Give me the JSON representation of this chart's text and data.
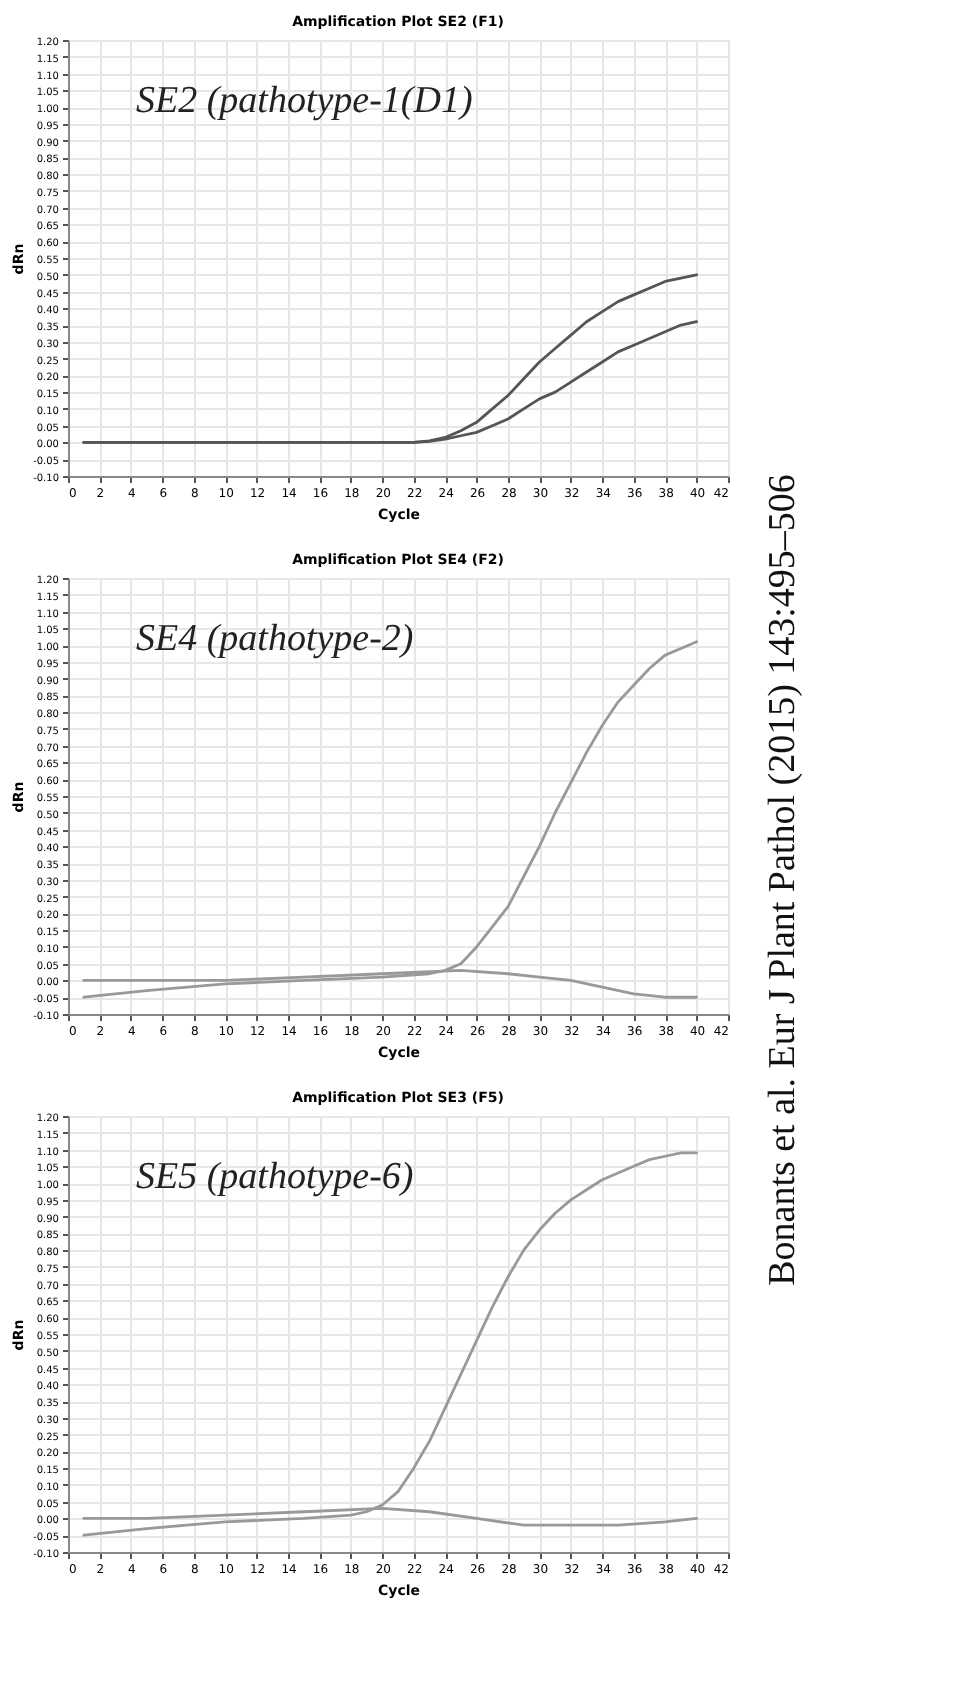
{
  "chart_data": [
    {
      "type": "line",
      "title": "Amplification Plot SE2 (F1)",
      "xlabel": "Cycle",
      "ylabel": "dRn",
      "annotations": [
        "SE2 (pathotype-1(D1)"
      ],
      "grid": true,
      "marker": "none",
      "line_style": "solid",
      "xlim": [
        0,
        42
      ],
      "xticks": [
        0,
        2,
        4,
        6,
        8,
        10,
        12,
        14,
        16,
        18,
        20,
        22,
        24,
        26,
        28,
        30,
        32,
        34,
        36,
        38,
        40,
        42
      ],
      "ylim": [
        -0.1,
        1.2
      ],
      "yticks": [
        {
          "value": -0.1,
          "label": "-0.10"
        },
        {
          "value": -0.05,
          "label": "-0.05"
        },
        {
          "value": 0,
          "label": "0.00"
        },
        {
          "value": 0.05,
          "label": "0.05"
        },
        {
          "value": 0.1,
          "label": "0.10"
        },
        {
          "value": 0.15,
          "label": "0.15"
        },
        {
          "value": 0.2,
          "label": "0.20"
        },
        {
          "value": 0.25,
          "label": "0.25"
        },
        {
          "value": 0.3,
          "label": "0.30"
        },
        {
          "value": 0.35,
          "label": "0.35"
        },
        {
          "value": 0.4,
          "label": "0.40"
        },
        {
          "value": 0.45,
          "label": "0.45"
        },
        {
          "value": 0.5,
          "label": "0.50"
        },
        {
          "value": 0.55,
          "label": "0.55"
        },
        {
          "value": 0.6,
          "label": "0.60"
        },
        {
          "value": 0.65,
          "label": "0.65"
        },
        {
          "value": 0.7,
          "label": "0.70"
        },
        {
          "value": 0.75,
          "label": "0.75"
        },
        {
          "value": 0.8,
          "label": "0.80"
        },
        {
          "value": 0.85,
          "label": "0.85"
        },
        {
          "value": 0.9,
          "label": "0.90"
        },
        {
          "value": 0.95,
          "label": "0.95"
        },
        {
          "value": 1.0,
          "label": "1.00"
        },
        {
          "value": 1.05,
          "label": "1.05"
        },
        {
          "value": 1.1,
          "label": "1.10"
        },
        {
          "value": 1.15,
          "label": "1.15"
        },
        {
          "value": 1.2,
          "label": "1.20"
        }
      ],
      "series": [
        {
          "color": "#555555",
          "x": [
            1,
            5,
            10,
            15,
            20,
            22,
            23,
            24,
            25,
            26,
            27,
            28,
            29,
            30,
            31,
            32,
            33,
            34,
            35,
            36,
            37,
            38,
            39,
            40
          ],
          "values": [
            0,
            0,
            0,
            0,
            0,
            0,
            0.005,
            0.015,
            0.035,
            0.06,
            0.1,
            0.14,
            0.19,
            0.24,
            0.28,
            0.32,
            0.36,
            0.39,
            0.42,
            0.44,
            0.46,
            0.48,
            0.49,
            0.5
          ]
        },
        {
          "color": "#555555",
          "x": [
            1,
            5,
            10,
            15,
            20,
            22,
            23,
            24,
            25,
            26,
            27,
            28,
            29,
            30,
            31,
            32,
            33,
            34,
            35,
            36,
            37,
            38,
            39,
            40
          ],
          "values": [
            0,
            0,
            0,
            0,
            0,
            0,
            0.003,
            0.01,
            0.02,
            0.03,
            0.05,
            0.07,
            0.1,
            0.13,
            0.15,
            0.18,
            0.21,
            0.24,
            0.27,
            0.29,
            0.31,
            0.33,
            0.35,
            0.36
          ]
        }
      ]
    },
    {
      "type": "line",
      "title": "Amplification Plot SE4 (F2)",
      "xlabel": "Cycle",
      "ylabel": "dRn",
      "annotations": [
        "SE4 (pathotype-2)"
      ],
      "grid": true,
      "marker": "none",
      "line_style": "solid",
      "xlim": [
        0,
        42
      ],
      "xticks": [
        0,
        2,
        4,
        6,
        8,
        10,
        12,
        14,
        16,
        18,
        20,
        22,
        24,
        26,
        28,
        30,
        32,
        34,
        36,
        38,
        40,
        42
      ],
      "ylim": [
        -0.1,
        1.2
      ],
      "yticks": [
        {
          "value": -0.1,
          "label": "-0.10"
        },
        {
          "value": -0.05,
          "label": "-0.05"
        },
        {
          "value": 0,
          "label": "0.00"
        },
        {
          "value": 0.05,
          "label": "0.05"
        },
        {
          "value": 0.1,
          "label": "0.10"
        },
        {
          "value": 0.15,
          "label": "0.15"
        },
        {
          "value": 0.2,
          "label": "0.20"
        },
        {
          "value": 0.25,
          "label": "0.25"
        },
        {
          "value": 0.3,
          "label": "0.30"
        },
        {
          "value": 0.35,
          "label": "0.35"
        },
        {
          "value": 0.4,
          "label": "0.40"
        },
        {
          "value": 0.45,
          "label": "0.45"
        },
        {
          "value": 0.5,
          "label": "0.50"
        },
        {
          "value": 0.55,
          "label": "0.55"
        },
        {
          "value": 0.6,
          "label": "0.60"
        },
        {
          "value": 0.65,
          "label": "0.65"
        },
        {
          "value": 0.7,
          "label": "0.70"
        },
        {
          "value": 0.75,
          "label": "0.75"
        },
        {
          "value": 0.8,
          "label": "0.80"
        },
        {
          "value": 0.85,
          "label": "0.85"
        },
        {
          "value": 0.9,
          "label": "0.90"
        },
        {
          "value": 0.95,
          "label": "0.95"
        },
        {
          "value": 1.0,
          "label": "1.00"
        },
        {
          "value": 1.05,
          "label": "1.05"
        },
        {
          "value": 1.1,
          "label": "1.10"
        },
        {
          "value": 1.15,
          "label": "1.15"
        },
        {
          "value": 1.2,
          "label": "1.20"
        }
      ],
      "series": [
        {
          "color": "#999999",
          "x": [
            1,
            5,
            10,
            15,
            20,
            23,
            24,
            25,
            26,
            27,
            28,
            29,
            30,
            31,
            32,
            33,
            34,
            35,
            36,
            37,
            38,
            39,
            40
          ],
          "values": [
            -0.05,
            -0.03,
            -0.01,
            0,
            0.01,
            0.02,
            0.03,
            0.05,
            0.1,
            0.16,
            0.22,
            0.31,
            0.4,
            0.5,
            0.59,
            0.68,
            0.76,
            0.83,
            0.88,
            0.93,
            0.97,
            0.99,
            1.01
          ]
        },
        {
          "color": "#999999",
          "x": [
            1,
            5,
            10,
            15,
            20,
            25,
            28,
            30,
            32,
            34,
            36,
            38,
            40
          ],
          "values": [
            0,
            0,
            0,
            0.01,
            0.02,
            0.03,
            0.02,
            0.01,
            0,
            -0.02,
            -0.04,
            -0.05,
            -0.05
          ]
        }
      ]
    },
    {
      "type": "line",
      "title": "Amplification Plot SE3 (F5)",
      "xlabel": "Cycle",
      "ylabel": "dRn",
      "annotations": [
        "SE5 (pathotype-6)",
        "Bonants et al. Eur J Plant Pathol (2015) 143:495–506"
      ],
      "grid": true,
      "marker": "none",
      "line_style": "solid",
      "xlim": [
        0,
        42
      ],
      "xticks": [
        0,
        2,
        4,
        6,
        8,
        10,
        12,
        14,
        16,
        18,
        20,
        22,
        24,
        26,
        28,
        30,
        32,
        34,
        36,
        38,
        40,
        42
      ],
      "ylim": [
        -0.1,
        1.2
      ],
      "yticks": [
        {
          "value": -0.1,
          "label": "-0.10"
        },
        {
          "value": -0.05,
          "label": "-0.05"
        },
        {
          "value": 0,
          "label": "0.00"
        },
        {
          "value": 0.05,
          "label": "0.05"
        },
        {
          "value": 0.1,
          "label": "0.10"
        },
        {
          "value": 0.15,
          "label": "0.15"
        },
        {
          "value": 0.2,
          "label": "0.20"
        },
        {
          "value": 0.25,
          "label": "0.25"
        },
        {
          "value": 0.3,
          "label": "0.30"
        },
        {
          "value": 0.35,
          "label": "0.35"
        },
        {
          "value": 0.4,
          "label": "0.40"
        },
        {
          "value": 0.45,
          "label": "0.45"
        },
        {
          "value": 0.5,
          "label": "0.50"
        },
        {
          "value": 0.55,
          "label": "0.55"
        },
        {
          "value": 0.6,
          "label": "0.60"
        },
        {
          "value": 0.65,
          "label": "0.65"
        },
        {
          "value": 0.7,
          "label": "0.70"
        },
        {
          "value": 0.75,
          "label": "0.75"
        },
        {
          "value": 0.8,
          "label": "0.80"
        },
        {
          "value": 0.85,
          "label": "0.85"
        },
        {
          "value": 0.9,
          "label": "0.90"
        },
        {
          "value": 0.95,
          "label": "0.95"
        },
        {
          "value": 1.0,
          "label": "1.00"
        },
        {
          "value": 1.05,
          "label": "1.05"
        },
        {
          "value": 1.1,
          "label": "1.10"
        },
        {
          "value": 1.15,
          "label": "1.15"
        },
        {
          "value": 1.2,
          "label": "1.20"
        }
      ],
      "series": [
        {
          "color": "#999999",
          "x": [
            1,
            5,
            10,
            15,
            18,
            19,
            20,
            21,
            22,
            23,
            24,
            25,
            26,
            27,
            28,
            29,
            30,
            31,
            32,
            33,
            34,
            35,
            36,
            37,
            38,
            39,
            40
          ],
          "values": [
            -0.05,
            -0.03,
            -0.01,
            0,
            0.01,
            0.02,
            0.04,
            0.08,
            0.15,
            0.23,
            0.33,
            0.43,
            0.53,
            0.63,
            0.72,
            0.8,
            0.86,
            0.91,
            0.95,
            0.98,
            1.01,
            1.03,
            1.05,
            1.07,
            1.08,
            1.09,
            1.09
          ]
        },
        {
          "color": "#999999",
          "x": [
            1,
            5,
            10,
            15,
            20,
            23,
            26,
            29,
            32,
            35,
            38,
            40
          ],
          "values": [
            0,
            0,
            0.01,
            0.02,
            0.03,
            0.02,
            0,
            -0.02,
            -0.02,
            -0.02,
            -0.01,
            0
          ]
        }
      ]
    }
  ]
}
